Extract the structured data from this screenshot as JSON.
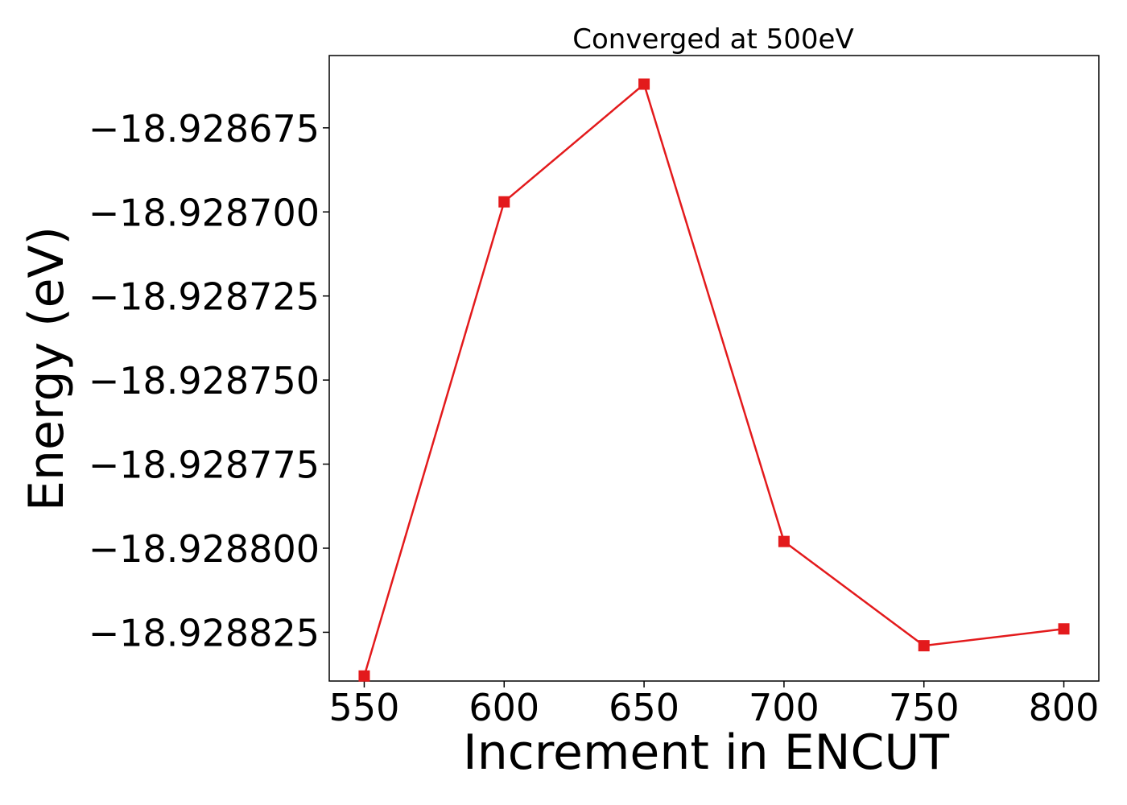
{
  "chart_data": {
    "type": "line",
    "title": "Converged at 500eV",
    "xlabel": "Increment in ENCUT",
    "ylabel": "Energy (eV)",
    "x": [
      550,
      600,
      650,
      700,
      750,
      800
    ],
    "series": [
      {
        "values": [
          -18.928838,
          -18.928697,
          -18.928662,
          -18.928798,
          -18.928829,
          -18.928824
        ],
        "color": "#e31a1c",
        "marker": "square"
      }
    ],
    "x_ticks": [
      550,
      600,
      650,
      700,
      750,
      800
    ],
    "x_tick_labels": [
      "550",
      "600",
      "650",
      "700",
      "750",
      "800"
    ],
    "y_ticks": [
      -18.928675,
      -18.9287,
      -18.928725,
      -18.92875,
      -18.928775,
      -18.9288,
      -18.928825
    ],
    "y_tick_labels": [
      "−18.928675",
      "−18.928700",
      "−18.928725",
      "−18.928750",
      "−18.928775",
      "−18.928800",
      "−18.928825"
    ],
    "xlim": [
      537.5,
      812.5
    ],
    "ylim": [
      -18.9288395,
      -18.9286535
    ],
    "grid": false,
    "legend": false
  }
}
